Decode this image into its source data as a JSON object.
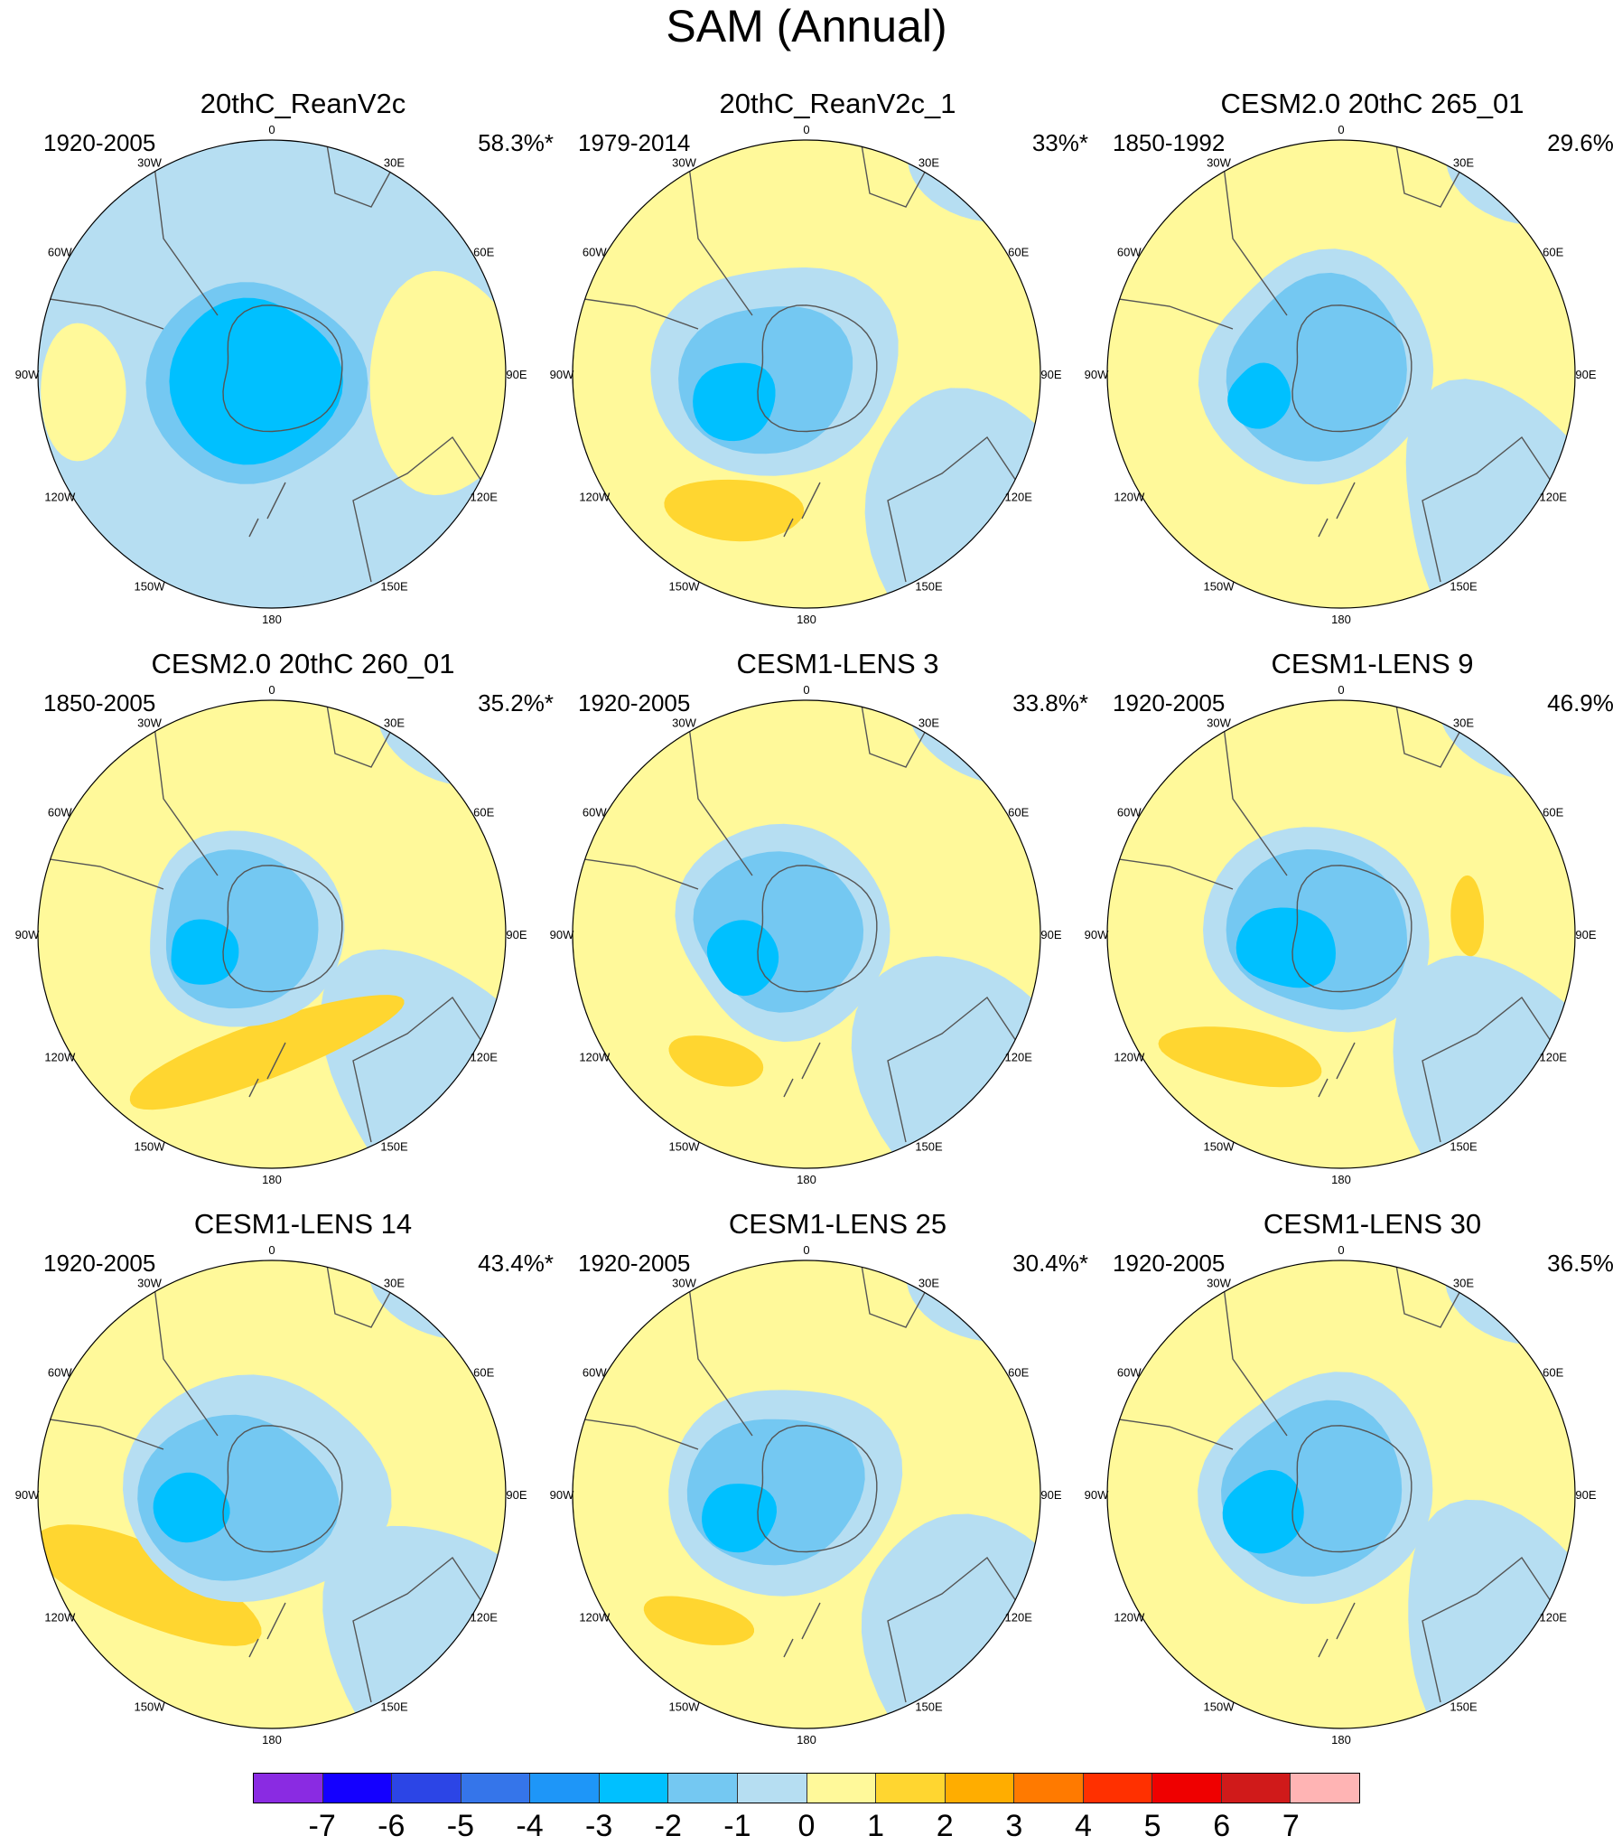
{
  "title": "SAM (Annual)",
  "longitude_labels": [
    "0",
    "30E",
    "60E",
    "90E",
    "120E",
    "150E",
    "180",
    "150W",
    "120W",
    "90W",
    "60W",
    "30W"
  ],
  "panels": [
    {
      "title": "20thC_ReanV2c",
      "period": "1920-2005",
      "pct": "58.3%*"
    },
    {
      "title": "20thC_ReanV2c_1",
      "period": "1979-2014",
      "pct": "33%*"
    },
    {
      "title": "CESM2.0 20thC 265_01",
      "period": "1850-1992",
      "pct": "29.6%*"
    },
    {
      "title": "CESM2.0 20thC 260_01",
      "period": "1850-2005",
      "pct": "35.2%*"
    },
    {
      "title": "CESM1-LENS 3",
      "period": "1920-2005",
      "pct": "33.8%*"
    },
    {
      "title": "CESM1-LENS 9",
      "period": "1920-2005",
      "pct": "46.9%*"
    },
    {
      "title": "CESM1-LENS 14",
      "period": "1920-2005",
      "pct": "43.4%*"
    },
    {
      "title": "CESM1-LENS 25",
      "period": "1920-2005",
      "pct": "30.4%*"
    },
    {
      "title": "CESM1-LENS 30",
      "period": "1920-2005",
      "pct": "36.5%*"
    }
  ],
  "colorbar": {
    "labels": [
      "-7",
      "-6",
      "-5",
      "-4",
      "-3",
      "-2",
      "-1",
      "0",
      "1",
      "2",
      "3",
      "4",
      "5",
      "6",
      "7"
    ],
    "colors": [
      "#8a2be2",
      "#1400ff",
      "#2c45e6",
      "#3575ea",
      "#1e96f8",
      "#00c0ff",
      "#74c8f2",
      "#b6def2",
      "#fff99a",
      "#ffd630",
      "#ffad00",
      "#ff7a00",
      "#ff3000",
      "#ef0000",
      "#d01a1a",
      "#ffb4b4"
    ]
  }
}
